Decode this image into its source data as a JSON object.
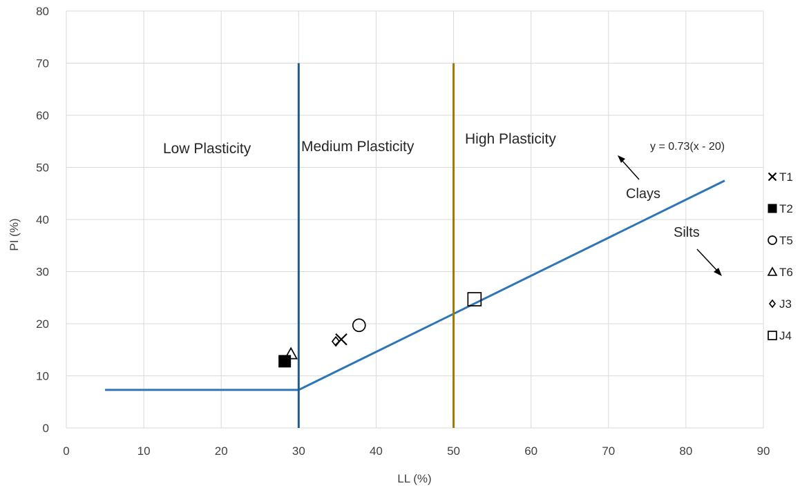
{
  "chart_data": {
    "type": "scatter",
    "xlabel": "LL (%)",
    "ylabel": "PI (%)",
    "xlim": [
      0,
      90
    ],
    "ylim": [
      0,
      80
    ],
    "xticks": [
      0,
      10,
      20,
      30,
      40,
      50,
      60,
      70,
      80,
      90
    ],
    "yticks": [
      0,
      10,
      20,
      30,
      40,
      50,
      60,
      70,
      80
    ],
    "grid": true,
    "legend_position": "right",
    "series": [
      {
        "name": "T1",
        "marker": "x",
        "x": 35.5,
        "y": 17
      },
      {
        "name": "T2",
        "marker": "filled-square",
        "x": 28.2,
        "y": 12.8
      },
      {
        "name": "T5",
        "marker": "circle",
        "x": 37.8,
        "y": 19.7
      },
      {
        "name": "T6",
        "marker": "triangle",
        "x": 29.0,
        "y": 14.2
      },
      {
        "name": "J3",
        "marker": "diamond",
        "x": 34.8,
        "y": 16.6
      },
      {
        "name": "J4",
        "marker": "square",
        "x": 52.7,
        "y": 24.7
      }
    ],
    "lines": [
      {
        "id": "a-line",
        "color": "#2e75b6",
        "points": [
          [
            5,
            7.3
          ],
          [
            30,
            7.3
          ],
          [
            85,
            47.45
          ]
        ]
      },
      {
        "id": "ll-30",
        "color": "#1f5c8b",
        "points": [
          [
            30,
            0
          ],
          [
            30,
            70
          ]
        ]
      },
      {
        "id": "ll-50",
        "color": "#a07800",
        "points": [
          [
            50,
            0
          ],
          [
            50,
            70
          ]
        ]
      }
    ],
    "zone_labels": [
      {
        "id": "low",
        "text": "Low Plasticity"
      },
      {
        "id": "medium",
        "text": "Medium Plasticity"
      },
      {
        "id": "high",
        "text": "High Plasticity"
      }
    ],
    "annotations": {
      "equation": "y = 0.73(x - 20)",
      "clays": "Clays",
      "silts": "Silts"
    }
  }
}
